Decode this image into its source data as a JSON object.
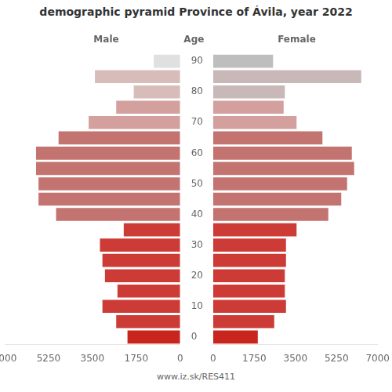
{
  "chart_data": {
    "type": "bar",
    "orientation": "horizontal",
    "title": "demographic pyramid Province of Ávila, year 2022",
    "y_label": "Age",
    "annotations": [
      "www.iz.sk/RES411"
    ],
    "categories": [
      "0",
      null,
      "10",
      null,
      "20",
      null,
      "30",
      null,
      "40",
      null,
      "50",
      null,
      "60",
      null,
      "70",
      null,
      "80",
      null,
      "90"
    ],
    "series": [
      {
        "name": "Male",
        "colors": [
          "#c8251e",
          "#cd3b36",
          "#cd3b36",
          "#cd3b36",
          "#cd3b36",
          "#cd3b36",
          "#cd3b36",
          "#cd3b36",
          "#c47470",
          "#c47470",
          "#c47470",
          "#c47470",
          "#c47470",
          "#c47470",
          "#d4a09e",
          "#d4a09e",
          "#d8bcba",
          "#d8bcba",
          "#e0e0e0"
        ],
        "values": [
          2100,
          2550,
          3100,
          2500,
          3000,
          3100,
          3200,
          2250,
          4950,
          5650,
          5650,
          5750,
          5750,
          4850,
          3650,
          2550,
          1850,
          3400,
          1050
        ]
      },
      {
        "name": "Female",
        "colors": [
          "#c8251e",
          "#cd3b36",
          "#cd3b36",
          "#cd3b36",
          "#cd3b36",
          "#cd3b36",
          "#cd3b36",
          "#cd3b36",
          "#c47470",
          "#c47470",
          "#c47470",
          "#c47470",
          "#c47470",
          "#c47470",
          "#d4a09e",
          "#d4a09e",
          "#c8b8b8",
          "#c8b8b8",
          "#bebebe"
        ],
        "values": [
          1900,
          2600,
          3100,
          3050,
          3050,
          3100,
          3100,
          3550,
          4900,
          5450,
          5700,
          6000,
          5900,
          4650,
          3550,
          3000,
          3050,
          6300,
          2550
        ]
      }
    ],
    "xlim": [
      0,
      7000
    ],
    "xticks": [
      0,
      1750,
      3500,
      5250,
      7000
    ],
    "grid": false
  }
}
